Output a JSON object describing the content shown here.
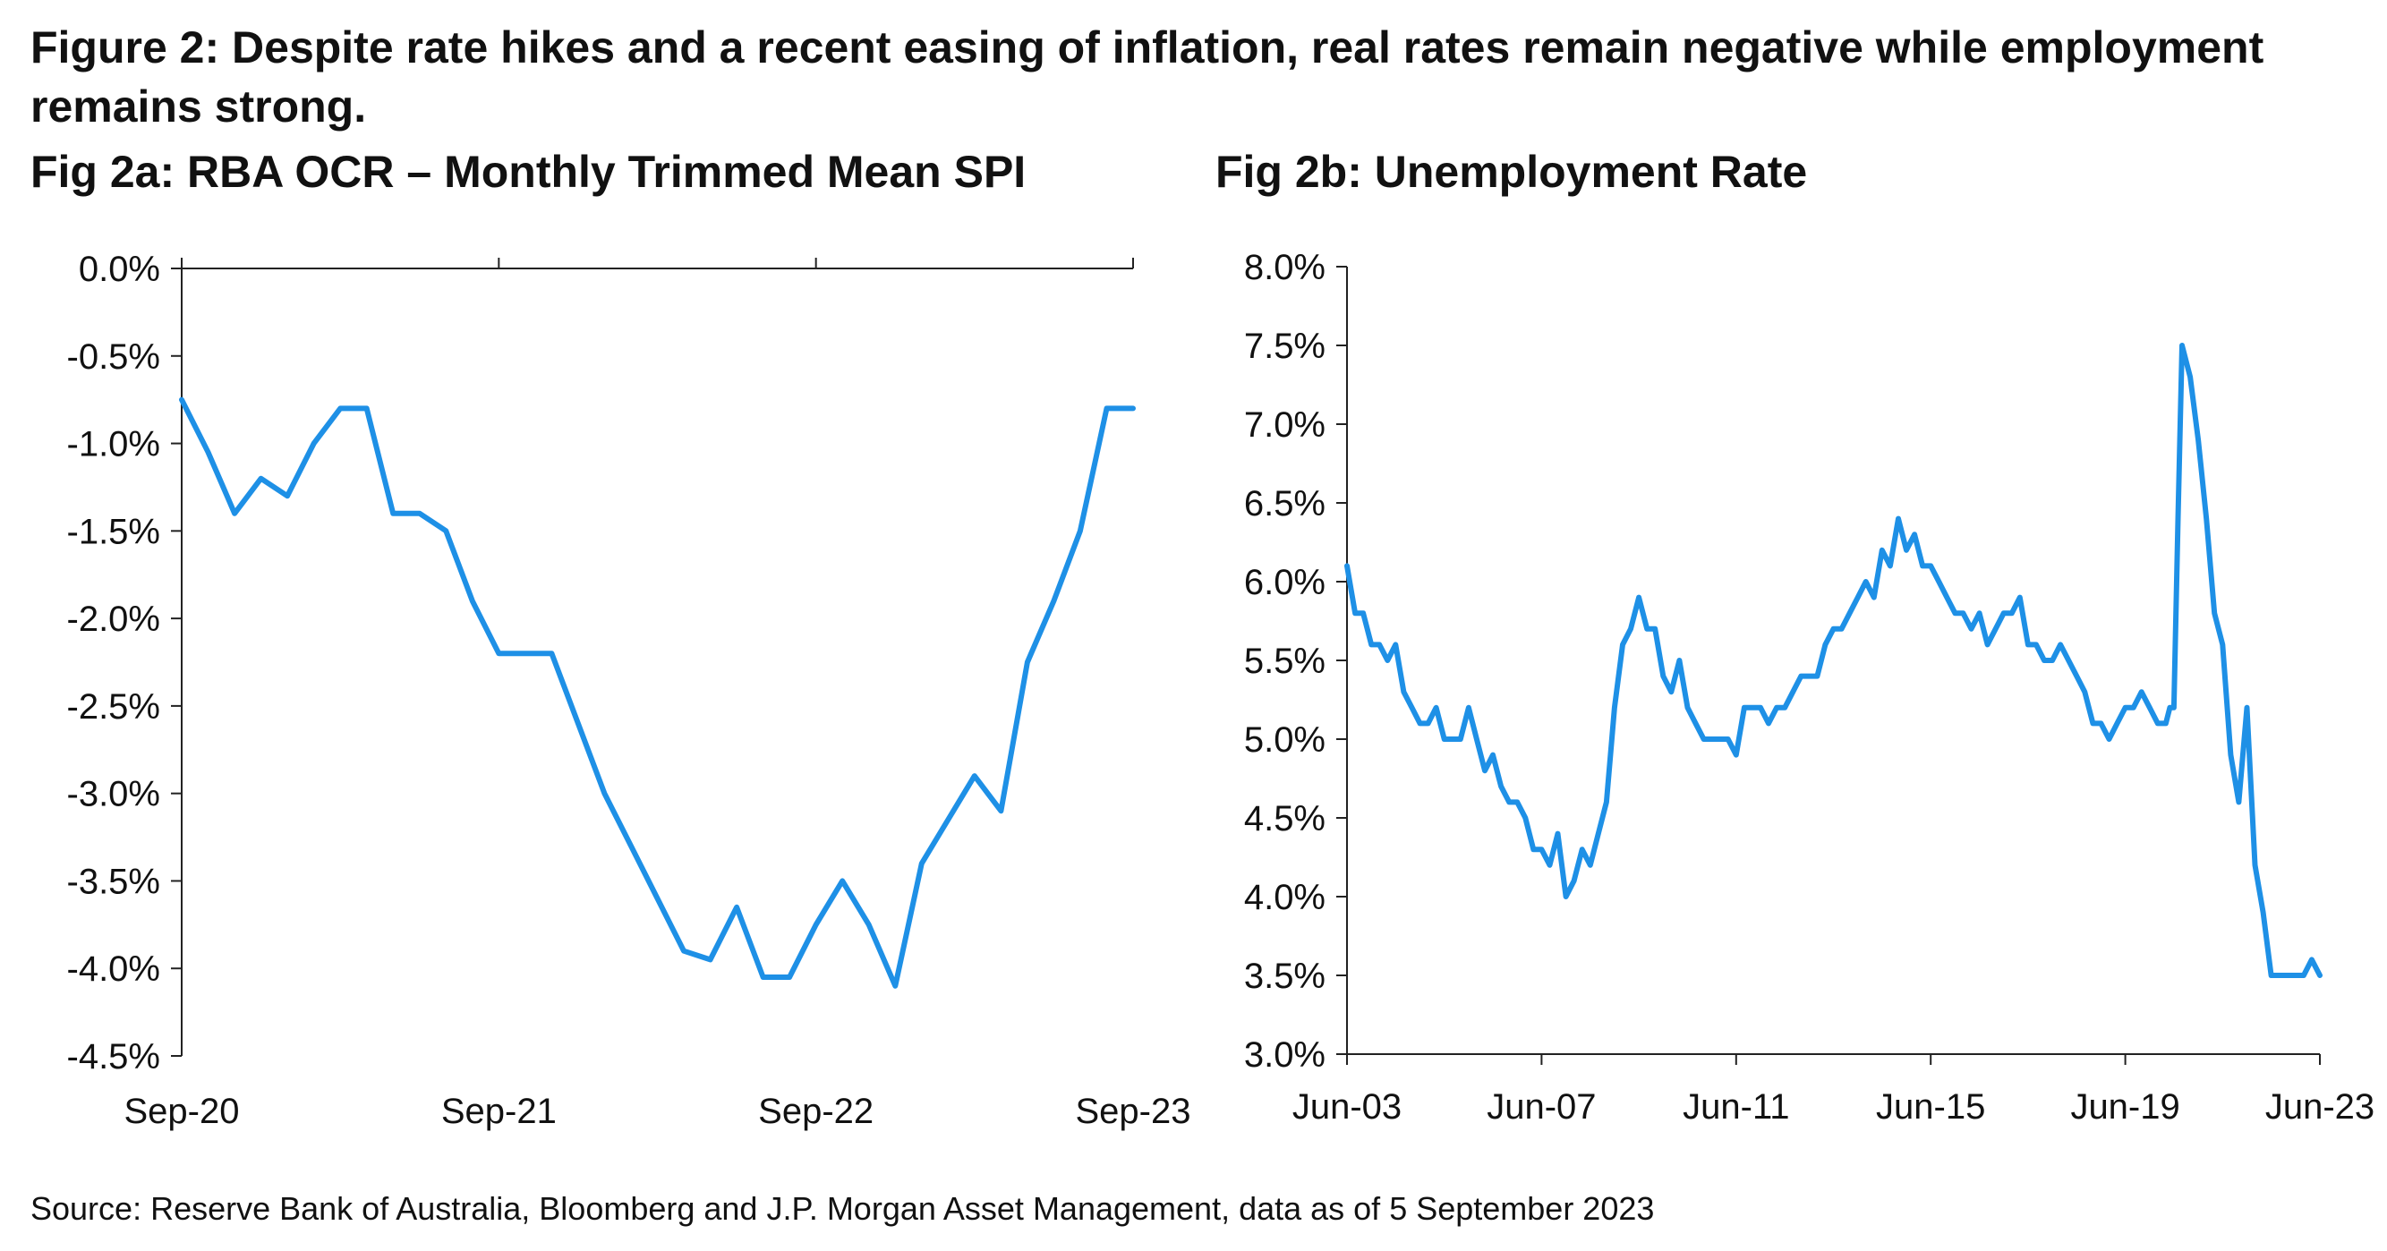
{
  "figure": {
    "title": "Figure 2: Despite rate hikes and a recent easing of inflation, real rates remain negative while employment remains strong.",
    "source": "Source: Reserve Bank of Australia, Bloomberg and J.P. Morgan Asset Management, data as of 5 September 2023"
  },
  "colors": {
    "series": "#1e90e6",
    "axis": "#222222",
    "text": "#111111"
  },
  "chart_data": [
    {
      "type": "line",
      "title": "Fig 2a: RBA OCR – Monthly Trimmed Mean SPI",
      "xlabel": "",
      "ylabel": "",
      "x_ticks": [
        "Sep-20",
        "Sep-21",
        "Sep-22",
        "Sep-23"
      ],
      "y_ticks": [
        "0.0%",
        "-0.5%",
        "-1.0%",
        "-1.5%",
        "-2.0%",
        "-2.5%",
        "-3.0%",
        "-3.5%",
        "-4.0%",
        "-4.5%"
      ],
      "ylim": [
        -4.5,
        0.0
      ],
      "xlim": [
        "2020-09",
        "2023-09"
      ],
      "grid": false,
      "legend": "none",
      "series": [
        {
          "x": [
            "2020-09",
            "2020-10",
            "2020-11",
            "2020-12",
            "2021-01",
            "2021-02",
            "2021-03",
            "2021-04",
            "2021-05",
            "2021-06",
            "2021-07",
            "2021-08",
            "2021-09",
            "2021-10",
            "2021-11",
            "2021-12",
            "2022-01",
            "2022-02",
            "2022-03",
            "2022-04",
            "2022-05",
            "2022-06",
            "2022-07",
            "2022-08",
            "2022-09",
            "2022-10",
            "2022-11",
            "2022-12",
            "2023-01",
            "2023-02",
            "2023-03",
            "2023-04",
            "2023-05",
            "2023-06",
            "2023-07",
            "2023-08",
            "2023-09"
          ],
          "values": [
            -0.75,
            -1.05,
            -1.4,
            -1.2,
            -1.3,
            -1.0,
            -0.8,
            -0.8,
            -1.4,
            -1.4,
            -1.5,
            -1.9,
            -2.2,
            -2.2,
            -2.2,
            -2.6,
            -3.0,
            -3.3,
            -3.6,
            -3.9,
            -3.95,
            -3.65,
            -4.05,
            -4.05,
            -3.75,
            -3.5,
            -3.75,
            -4.1,
            -3.4,
            -3.15,
            -2.9,
            -3.1,
            -2.25,
            -1.9,
            -1.5,
            -0.8,
            -0.8
          ]
        }
      ]
    },
    {
      "type": "line",
      "title": "Fig 2b: Unemployment Rate",
      "xlabel": "",
      "ylabel": "",
      "x_ticks": [
        "Jun-03",
        "Jun-07",
        "Jun-11",
        "Jun-15",
        "Jun-19",
        "Jun-23"
      ],
      "y_ticks": [
        "8.0%",
        "7.5%",
        "7.0%",
        "6.5%",
        "6.0%",
        "5.5%",
        "5.0%",
        "4.5%",
        "4.0%",
        "3.5%",
        "3.0%"
      ],
      "ylim": [
        3.0,
        8.0
      ],
      "xlim": [
        "2003-06",
        "2023-06"
      ],
      "grid": false,
      "legend": "none",
      "series": [
        {
          "x": [
            "2003-06",
            "2003-08",
            "2003-10",
            "2003-12",
            "2004-02",
            "2004-04",
            "2004-06",
            "2004-08",
            "2004-10",
            "2004-12",
            "2005-02",
            "2005-04",
            "2005-06",
            "2005-08",
            "2005-10",
            "2005-12",
            "2006-02",
            "2006-04",
            "2006-06",
            "2006-08",
            "2006-10",
            "2006-12",
            "2007-02",
            "2007-04",
            "2007-06",
            "2007-08",
            "2007-10",
            "2007-12",
            "2008-02",
            "2008-04",
            "2008-06",
            "2008-08",
            "2008-10",
            "2008-12",
            "2009-02",
            "2009-04",
            "2009-06",
            "2009-08",
            "2009-10",
            "2009-12",
            "2010-02",
            "2010-04",
            "2010-06",
            "2010-08",
            "2010-10",
            "2010-12",
            "2011-02",
            "2011-04",
            "2011-06",
            "2011-08",
            "2011-10",
            "2011-12",
            "2012-02",
            "2012-04",
            "2012-06",
            "2012-08",
            "2012-10",
            "2012-12",
            "2013-02",
            "2013-04",
            "2013-06",
            "2013-08",
            "2013-10",
            "2013-12",
            "2014-02",
            "2014-04",
            "2014-06",
            "2014-08",
            "2014-10",
            "2014-12",
            "2015-02",
            "2015-04",
            "2015-06",
            "2015-08",
            "2015-10",
            "2015-12",
            "2016-02",
            "2016-04",
            "2016-06",
            "2016-08",
            "2016-10",
            "2016-12",
            "2017-02",
            "2017-04",
            "2017-06",
            "2017-08",
            "2017-10",
            "2017-12",
            "2018-02",
            "2018-04",
            "2018-06",
            "2018-08",
            "2018-10",
            "2018-12",
            "2019-02",
            "2019-04",
            "2019-06",
            "2019-08",
            "2019-10",
            "2019-12",
            "2020-02",
            "2020-04",
            "2020-05",
            "2020-06",
            "2020-07",
            "2020-08",
            "2020-10",
            "2020-12",
            "2021-02",
            "2021-04",
            "2021-06",
            "2021-08",
            "2021-10",
            "2021-12",
            "2022-02",
            "2022-04",
            "2022-06",
            "2022-08",
            "2022-10",
            "2022-12",
            "2023-02",
            "2023-04",
            "2023-06"
          ],
          "values": [
            6.1,
            5.8,
            5.8,
            5.6,
            5.6,
            5.5,
            5.6,
            5.3,
            5.2,
            5.1,
            5.1,
            5.2,
            5.0,
            5.0,
            5.0,
            5.2,
            5.0,
            4.8,
            4.9,
            4.7,
            4.6,
            4.6,
            4.5,
            4.3,
            4.3,
            4.2,
            4.4,
            4.0,
            4.1,
            4.3,
            4.2,
            4.4,
            4.6,
            5.2,
            5.6,
            5.7,
            5.9,
            5.7,
            5.7,
            5.4,
            5.3,
            5.5,
            5.2,
            5.1,
            5.0,
            5.0,
            5.0,
            5.0,
            4.9,
            5.2,
            5.2,
            5.2,
            5.1,
            5.2,
            5.2,
            5.3,
            5.4,
            5.4,
            5.4,
            5.6,
            5.7,
            5.7,
            5.8,
            5.9,
            6.0,
            5.9,
            6.2,
            6.1,
            6.4,
            6.2,
            6.3,
            6.1,
            6.1,
            6.0,
            5.9,
            5.8,
            5.8,
            5.7,
            5.8,
            5.6,
            5.7,
            5.8,
            5.8,
            5.9,
            5.6,
            5.6,
            5.5,
            5.5,
            5.6,
            5.5,
            5.4,
            5.3,
            5.1,
            5.1,
            5.0,
            5.1,
            5.2,
            5.2,
            5.3,
            5.2,
            5.1,
            5.1,
            5.2,
            5.2,
            6.4,
            7.5,
            7.3,
            6.9,
            6.4,
            5.8,
            5.6,
            4.9,
            4.6,
            5.2,
            4.2,
            3.9,
            3.5,
            3.5,
            3.5,
            3.5,
            3.5,
            3.6,
            3.5
          ]
        }
      ]
    }
  ]
}
